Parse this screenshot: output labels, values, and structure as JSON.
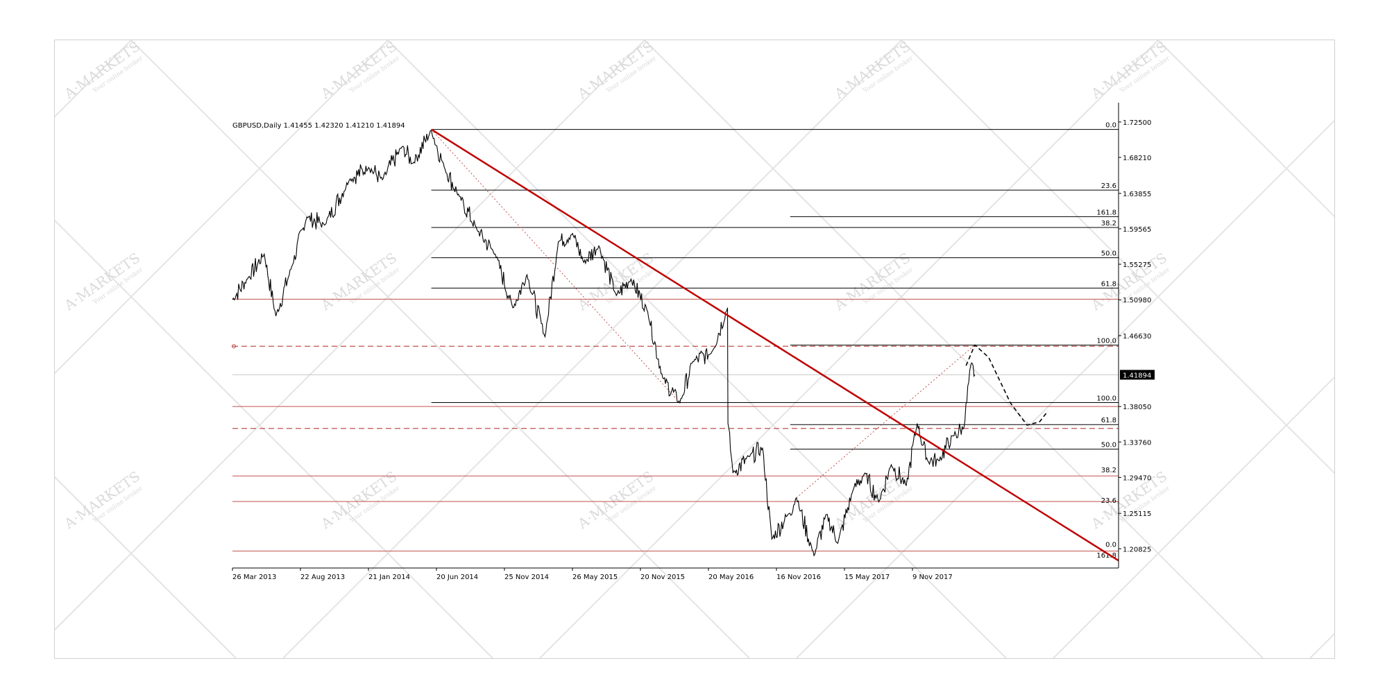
{
  "chart_data": {
    "type": "line",
    "symbol_header": "GBPUSD,Daily  1.41455 1.42320 1.41210 1.41894",
    "current_price_label": "1.41894",
    "y_ticks": [
      "1.72500",
      "1.68210",
      "1.63855",
      "1.59565",
      "1.55275",
      "1.50980",
      "1.46630",
      "1.38050",
      "1.33760",
      "1.29470",
      "1.25115",
      "1.20825"
    ],
    "y_tick_values": [
      1.725,
      1.6821,
      1.63855,
      1.59565,
      1.55275,
      1.5098,
      1.4663,
      1.3805,
      1.3376,
      1.2947,
      1.25115,
      1.20825
    ],
    "ylim": [
      1.185,
      1.74
    ],
    "x_ticks": [
      "26 Mar 2013",
      "22 Aug 2013",
      "21 Jan 2014",
      "20 Jun 2014",
      "25 Nov 2014",
      "26 May 2015",
      "20 Nov 2015",
      "20 May 2016",
      "16 Nov 2016",
      "15 May 2017",
      "9 Nov 2017"
    ],
    "x_range": [
      "2013-03-26",
      "2019-01-15"
    ],
    "series": [
      {
        "values": [
          {
            "x": "2013-03-26",
            "y": 1.51
          },
          {
            "x": "2013-05-01",
            "y": 1.535
          },
          {
            "x": "2013-06-10",
            "y": 1.565
          },
          {
            "x": "2013-07-08",
            "y": 1.49
          },
          {
            "x": "2013-08-15",
            "y": 1.55
          },
          {
            "x": "2013-09-20",
            "y": 1.61
          },
          {
            "x": "2013-11-01",
            "y": 1.6
          },
          {
            "x": "2013-12-31",
            "y": 1.655
          },
          {
            "x": "2014-02-15",
            "y": 1.67
          },
          {
            "x": "2014-03-20",
            "y": 1.655
          },
          {
            "x": "2014-05-06",
            "y": 1.695
          },
          {
            "x": "2014-06-01",
            "y": 1.675
          },
          {
            "x": "2014-07-15",
            "y": 1.715
          },
          {
            "x": "2014-08-15",
            "y": 1.67
          },
          {
            "x": "2014-09-20",
            "y": 1.635
          },
          {
            "x": "2014-11-01",
            "y": 1.595
          },
          {
            "x": "2014-12-15",
            "y": 1.565
          },
          {
            "x": "2015-01-26",
            "y": 1.5
          },
          {
            "x": "2015-03-01",
            "y": 1.54
          },
          {
            "x": "2015-04-13",
            "y": 1.465
          },
          {
            "x": "2015-05-15",
            "y": 1.58
          },
          {
            "x": "2015-06-18",
            "y": 1.59
          },
          {
            "x": "2015-07-15",
            "y": 1.555
          },
          {
            "x": "2015-08-20",
            "y": 1.575
          },
          {
            "x": "2015-10-01",
            "y": 1.515
          },
          {
            "x": "2015-11-05",
            "y": 1.535
          },
          {
            "x": "2015-12-15",
            "y": 1.495
          },
          {
            "x": "2016-01-20",
            "y": 1.415
          },
          {
            "x": "2016-03-01",
            "y": 1.385
          },
          {
            "x": "2016-04-01",
            "y": 1.435
          },
          {
            "x": "2016-05-15",
            "y": 1.445
          },
          {
            "x": "2016-06-23",
            "y": 1.5
          },
          {
            "x": "2016-06-24",
            "y": 1.36
          },
          {
            "x": "2016-07-06",
            "y": 1.3
          },
          {
            "x": "2016-08-15",
            "y": 1.32
          },
          {
            "x": "2016-09-15",
            "y": 1.33
          },
          {
            "x": "2016-10-07",
            "y": 1.22
          },
          {
            "x": "2016-11-15",
            "y": 1.25
          },
          {
            "x": "2016-12-05",
            "y": 1.27
          },
          {
            "x": "2017-01-16",
            "y": 1.2
          },
          {
            "x": "2017-02-15",
            "y": 1.25
          },
          {
            "x": "2017-03-14",
            "y": 1.215
          },
          {
            "x": "2017-04-20",
            "y": 1.28
          },
          {
            "x": "2017-05-18",
            "y": 1.3
          },
          {
            "x": "2017-06-20",
            "y": 1.265
          },
          {
            "x": "2017-07-20",
            "y": 1.31
          },
          {
            "x": "2017-08-25",
            "y": 1.285
          },
          {
            "x": "2017-09-20",
            "y": 1.36
          },
          {
            "x": "2017-10-15",
            "y": 1.315
          },
          {
            "x": "2017-11-10",
            "y": 1.315
          },
          {
            "x": "2017-12-15",
            "y": 1.345
          },
          {
            "x": "2018-01-10",
            "y": 1.355
          },
          {
            "x": "2018-01-26",
            "y": 1.43
          },
          {
            "x": "2018-02-05",
            "y": 1.41894
          }
        ]
      }
    ],
    "projection_path": [
      {
        "x": "2018-01-15",
        "y": 1.43
      },
      {
        "x": "2018-02-05",
        "y": 1.455
      },
      {
        "x": "2018-03-10",
        "y": 1.44
      },
      {
        "x": "2018-05-01",
        "y": 1.385
      },
      {
        "x": "2018-06-10",
        "y": 1.358
      },
      {
        "x": "2018-07-10",
        "y": 1.362
      },
      {
        "x": "2018-07-30",
        "y": 1.375
      }
    ],
    "fibo_upper": {
      "x_start": "2014-07-15",
      "levels": [
        {
          "label": "0.0",
          "y": 1.716
        },
        {
          "label": "23.6",
          "y": 1.6425
        },
        {
          "label": "38.2",
          "y": 1.5973
        },
        {
          "label": "50.0",
          "y": 1.5606
        },
        {
          "label": "61.8",
          "y": 1.5239
        },
        {
          "label": "100.0",
          "y": 1.3853
        }
      ]
    },
    "fibo_extension": {
      "x_start": "2016-11-20",
      "levels": [
        {
          "label": "161.8",
          "y": 1.6104
        },
        {
          "label": "100.0",
          "y": 1.4548
        },
        {
          "label": "61.8",
          "y": 1.3586
        },
        {
          "label": "50.0",
          "y": 1.3289
        }
      ]
    },
    "fibo_lower_labels": [
      {
        "label": "38.2",
        "y": 1.2985
      },
      {
        "label": "23.6",
        "y": 1.2614
      },
      {
        "label": "0.0",
        "y": 1.2082
      },
      {
        "label": "161.8",
        "y": 1.195
      }
    ],
    "red_levels": [
      1.5105,
      1.3805,
      1.2965,
      1.2655,
      1.2055
    ],
    "red_dashed_levels": [
      1.4535,
      1.354
    ],
    "current_price_line": 1.41894,
    "trendline": [
      {
        "x": "2014-07-15",
        "y": 1.716
      },
      {
        "x": "2019-01-15",
        "y": 1.194
      }
    ],
    "dotted_trendlines": [
      [
        {
          "x": "2014-07-15",
          "y": 1.716
        },
        {
          "x": "2016-03-01",
          "y": 1.385
        }
      ],
      [
        {
          "x": "2016-12-05",
          "y": 1.27
        },
        {
          "x": "2018-02-05",
          "y": 1.455
        }
      ]
    ],
    "grid": false,
    "watermark_text": "A·MARKETS",
    "watermark_slogan": "Your online broker"
  }
}
